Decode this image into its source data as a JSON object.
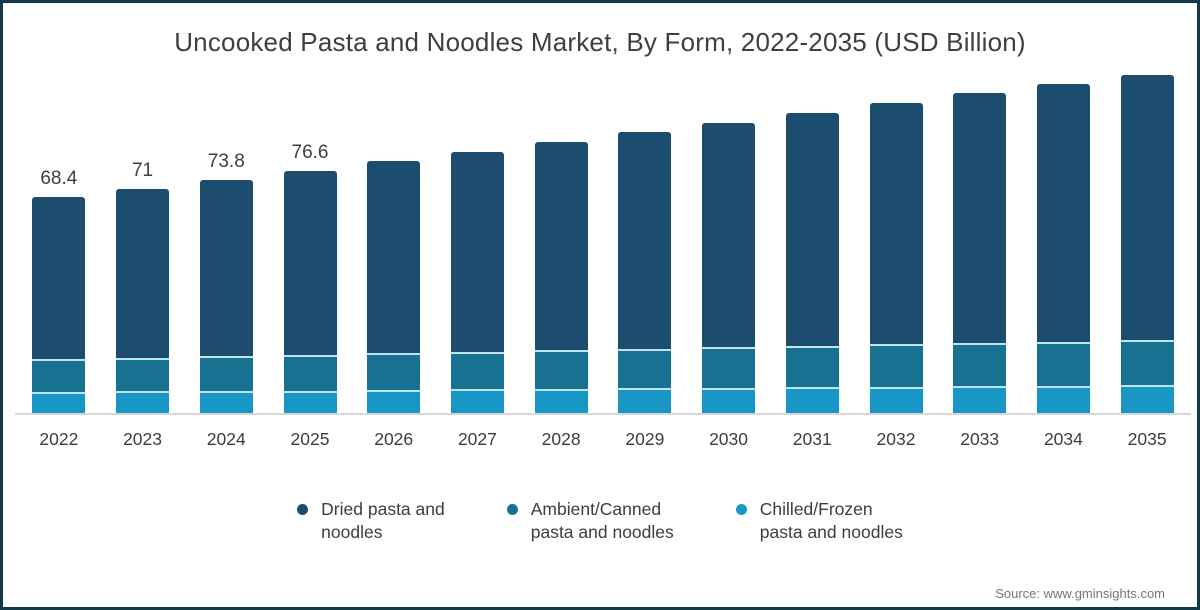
{
  "title": "Uncooked Pasta and Noodles Market, By Form, 2022-2035 (USD Billion)",
  "source": "Source: www.gminsights.com",
  "colors": {
    "dried": "#1c4c6e",
    "ambient_canned": "#177292",
    "chilled_frozen": "#1896c6",
    "frame": "#123a46",
    "axis": "#d7d7d7"
  },
  "chart_data": {
    "type": "bar",
    "stacked": true,
    "title": "Uncooked Pasta and Noodles Market, By Form, 2022-2035 (USD Billion)",
    "xlabel": "",
    "ylabel": "USD Billion",
    "ylim": [
      0,
      110
    ],
    "grid": false,
    "legend_position": "bottom",
    "categories": [
      "2022",
      "2023",
      "2024",
      "2025",
      "2026",
      "2027",
      "2028",
      "2029",
      "2030",
      "2031",
      "2032",
      "2033",
      "2034",
      "2035"
    ],
    "totals": [
      68.4,
      71,
      73.8,
      76.6,
      79.9,
      82.5,
      85.6,
      88.8,
      91.9,
      94.8,
      97.9,
      101.1,
      103.9,
      107
    ],
    "total_labels": [
      "68.4",
      "71",
      "73.8",
      "76.6",
      "",
      "",
      "",
      "",
      "",
      "",
      "",
      "",
      "",
      ""
    ],
    "series": [
      {
        "key": "dried",
        "name": "Dried pasta and noodles",
        "color": "#1c4c6e",
        "values": [
          51.1,
          53.2,
          55.5,
          57.9,
          60.7,
          62.8,
          65.5,
          68.2,
          70.8,
          73.3,
          75.9,
          78.7,
          81.1,
          83.7
        ]
      },
      {
        "key": "ambient-canned",
        "name": "Ambient/Canned pasta and noodles",
        "color": "#177292",
        "values": [
          10.4,
          10.7,
          11.0,
          11.3,
          11.6,
          11.9,
          12.2,
          12.5,
          12.8,
          13.1,
          13.4,
          13.6,
          13.9,
          14.2
        ]
      },
      {
        "key": "chilled-frozen",
        "name": "Chilled/Frozen pasta and noodles",
        "color": "#1896c6",
        "values": [
          6.9,
          7.1,
          7.3,
          7.4,
          7.6,
          7.8,
          7.9,
          8.1,
          8.3,
          8.4,
          8.6,
          8.8,
          8.9,
          9.1
        ]
      }
    ]
  },
  "legend": {
    "items": [
      {
        "key": "dried",
        "color": "#1c4c6e",
        "lines": [
          "Dried pasta and",
          "noodles"
        ]
      },
      {
        "key": "ambient-canned",
        "color": "#177292",
        "lines": [
          "Ambient/Canned",
          "pasta and noodles"
        ]
      },
      {
        "key": "chilled-frozen",
        "color": "#1896c6",
        "lines": [
          "Chilled/Frozen",
          "pasta and noodles"
        ]
      }
    ]
  }
}
